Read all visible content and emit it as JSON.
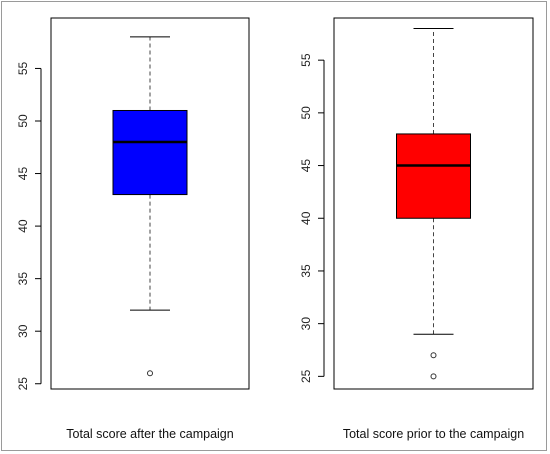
{
  "chart_data": [
    {
      "type": "box",
      "xlabel": "Total score after the campaign",
      "ylim": [
        24.5,
        59.8
      ],
      "yticks": [
        25,
        30,
        35,
        40,
        45,
        50,
        55
      ],
      "box": {
        "min": 32,
        "q1": 43,
        "median": 48,
        "q3": 51,
        "max": 58,
        "outliers": [
          26
        ]
      },
      "color": "#0000ff"
    },
    {
      "type": "box",
      "xlabel": "Total score prior to the campaign",
      "ylim": [
        23.8,
        59.0
      ],
      "yticks": [
        25,
        30,
        35,
        40,
        45,
        50,
        55
      ],
      "box": {
        "min": 29,
        "q1": 40,
        "median": 45,
        "q3": 48,
        "max": 58,
        "outliers": [
          27,
          25
        ]
      },
      "color": "#ff0000"
    }
  ]
}
